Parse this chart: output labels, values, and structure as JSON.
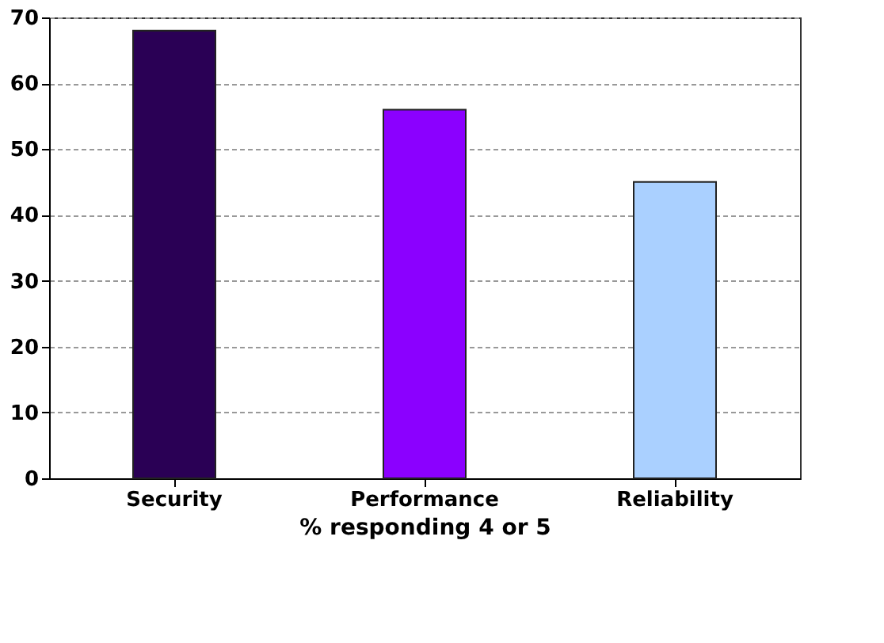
{
  "chart_data": {
    "type": "bar",
    "xlabel": "%  responding 4 or 5",
    "categories": [
      "Security",
      "Performance",
      "Reliability"
    ],
    "values": [
      68,
      56,
      45
    ],
    "colors": [
      "#2a0055",
      "#8b00ff",
      "#aad0ff"
    ],
    "ylim": [
      0,
      70
    ],
    "yticks": [
      0,
      10,
      20,
      30,
      40,
      50,
      60,
      70
    ],
    "grid": "y"
  }
}
